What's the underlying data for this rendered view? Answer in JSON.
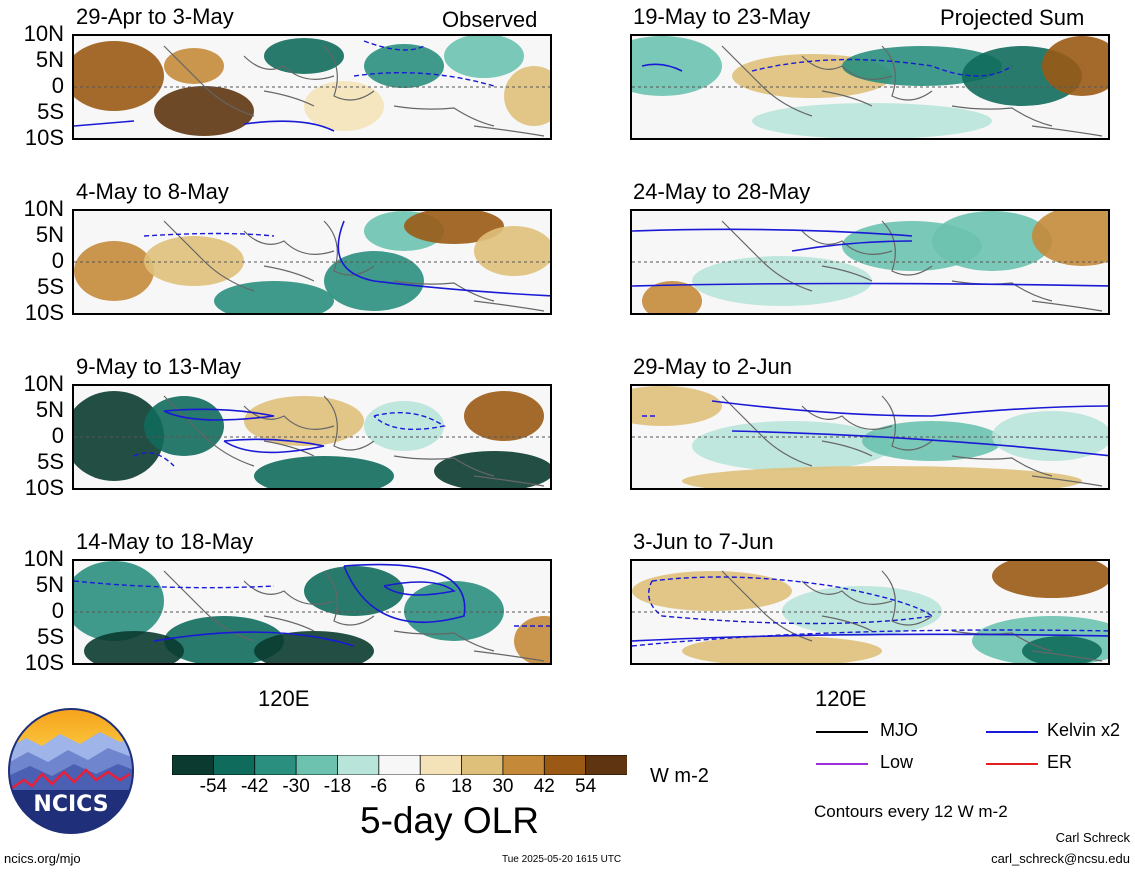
{
  "columns": {
    "left_title": "Observed",
    "right_title": "Projected Sum"
  },
  "panels": {
    "left": [
      "29-Apr to 3-May",
      "4-May to 8-May",
      "9-May to 13-May",
      "14-May to 18-May"
    ],
    "right": [
      "19-May to 23-May",
      "24-May to 28-May",
      "29-May to 2-Jun",
      "3-Jun to 7-Jun"
    ]
  },
  "lat_labels": [
    "10N",
    "5N",
    "0",
    "5S",
    "10S"
  ],
  "x_label": "120E",
  "colorbar": {
    "ticks": [
      "-54",
      "-42",
      "-30",
      "-18",
      "-6",
      "6",
      "18",
      "30",
      "42",
      "54"
    ],
    "units": "W m-2",
    "colors": [
      "#0b3b30",
      "#0f6b5c",
      "#2a8f7e",
      "#6cc2af",
      "#b9e4d9",
      "#f7f7f7",
      "#f4e3b8",
      "#dfc07a",
      "#c48a3a",
      "#9a5a15",
      "#5e3510"
    ]
  },
  "title": "5-day OLR",
  "legend": {
    "mjo": "MJO",
    "kelvin": "Kelvin x2",
    "low": "Low",
    "er": "ER",
    "contours_note": "Contours every 12 W m-2",
    "colors": {
      "mjo": "#000000",
      "kelvin": "#1a1ad6",
      "low": "#9b30d9",
      "er": "#e02020"
    }
  },
  "logo_text": "NCICS",
  "url": "ncics.org/mjo",
  "timestamp": "Tue 2025-05-20 1615 UTC",
  "credit": {
    "name": "Carl Schreck",
    "email": "carl_schreck@ncsu.edu"
  }
}
